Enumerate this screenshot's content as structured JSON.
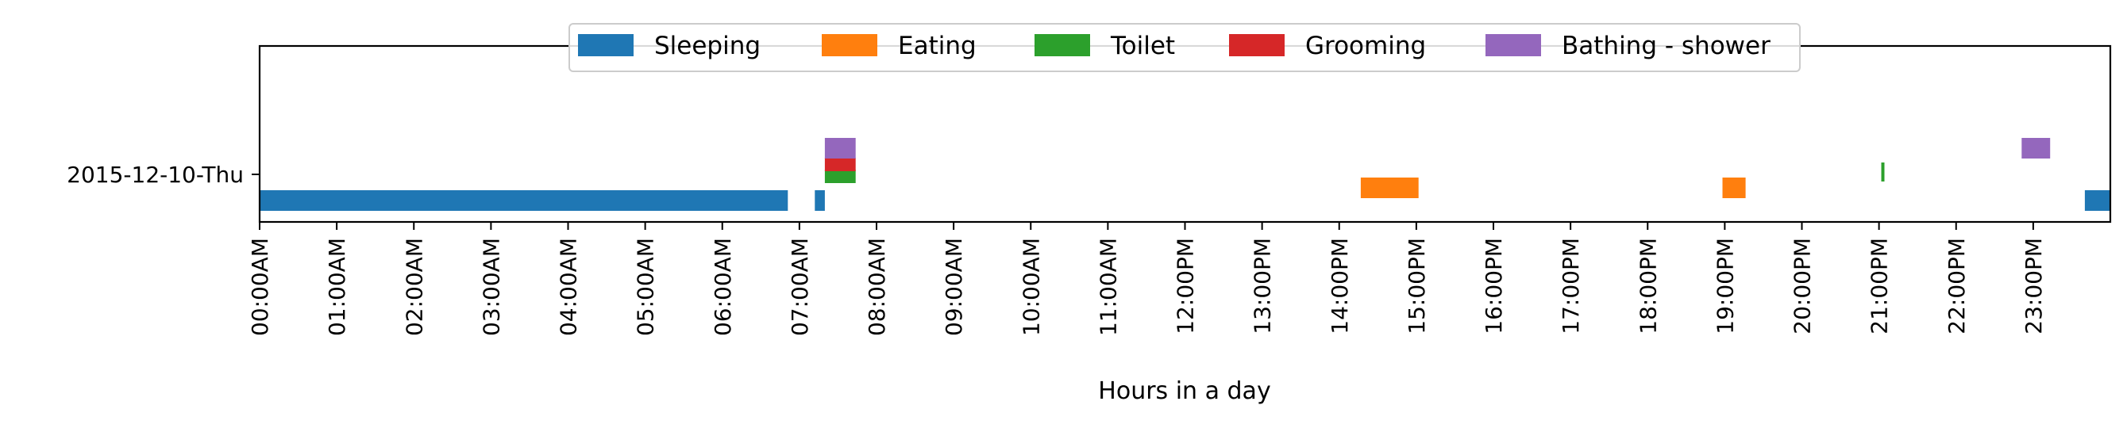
{
  "chart_data": {
    "type": "bar",
    "orientation": "horizontal-timeline",
    "xlabel": "Hours in a day",
    "xlim": [
      0,
      24
    ],
    "x_ticks": [
      "00:00AM",
      "01:00AM",
      "02:00AM",
      "03:00AM",
      "04:00AM",
      "05:00AM",
      "06:00AM",
      "07:00AM",
      "08:00AM",
      "09:00AM",
      "10:00AM",
      "11:00AM",
      "12:00PM",
      "13:00PM",
      "14:00PM",
      "15:00PM",
      "16:00PM",
      "17:00PM",
      "18:00PM",
      "19:00PM",
      "20:00PM",
      "21:00PM",
      "22:00PM",
      "23:00PM"
    ],
    "y_categories": [
      "2015-12-10-Thu"
    ],
    "grid": false,
    "legend_position": "top-center",
    "series": [
      {
        "name": "Sleeping",
        "color": "#1f77b4",
        "segments": [
          {
            "start": 0.0,
            "end": 6.85
          },
          {
            "start": 7.2,
            "end": 7.33
          },
          {
            "start": 23.67,
            "end": 24.0
          }
        ]
      },
      {
        "name": "Eating",
        "color": "#ff7f0e",
        "segments": [
          {
            "start": 14.28,
            "end": 15.03
          },
          {
            "start": 18.97,
            "end": 19.27
          }
        ]
      },
      {
        "name": "Toilet",
        "color": "#2ca02c",
        "segments": [
          {
            "start": 7.33,
            "end": 7.73
          },
          {
            "start": 21.03,
            "end": 21.07
          }
        ]
      },
      {
        "name": "Grooming",
        "color": "#d62728",
        "segments": [
          {
            "start": 7.33,
            "end": 7.73
          }
        ]
      },
      {
        "name": "Bathing - shower",
        "color": "#9467bd",
        "segments": [
          {
            "start": 7.33,
            "end": 7.73
          },
          {
            "start": 22.85,
            "end": 23.22
          }
        ]
      }
    ]
  }
}
